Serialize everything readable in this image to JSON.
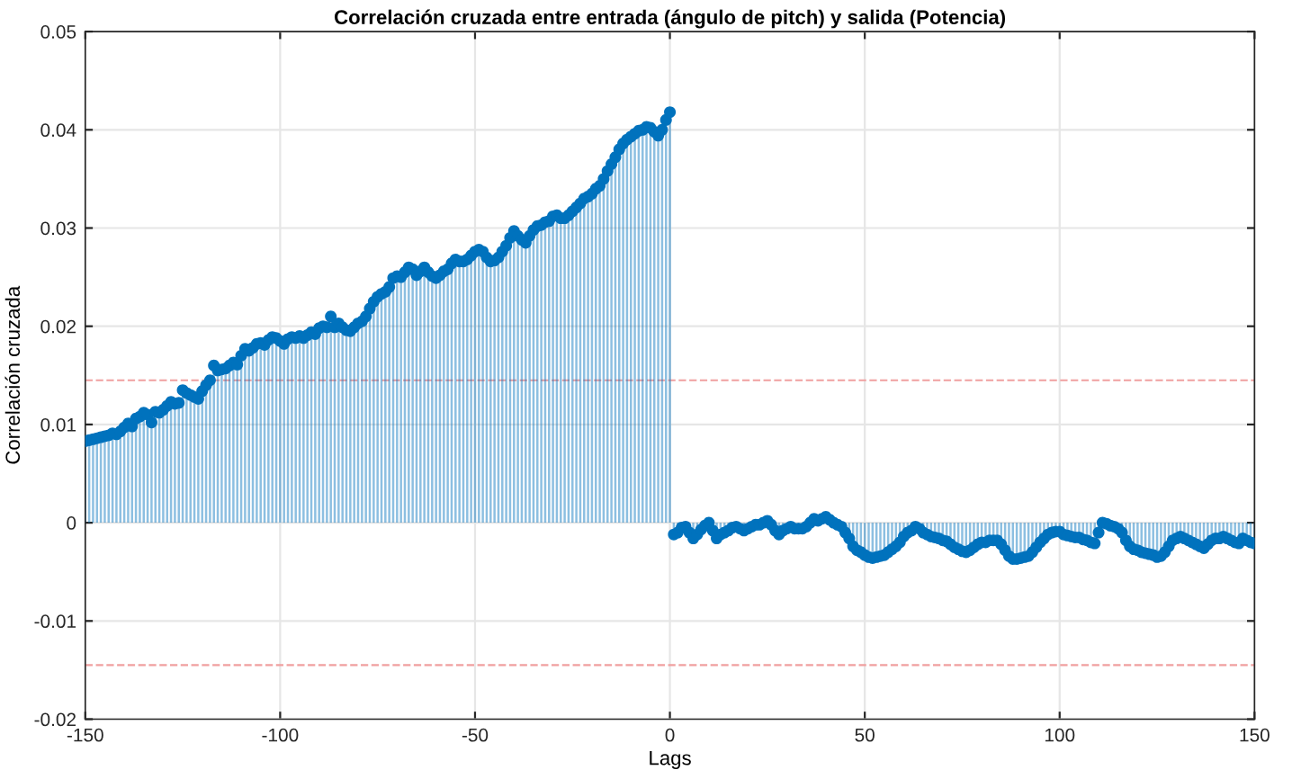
{
  "chart_data": {
    "type": "lollipop",
    "title": "Correlación cruzada entre entrada (ángulo de pitch) y salida (Potencia)",
    "xlabel": "Lags",
    "ylabel": "Correlación cruzada",
    "x": [
      -150,
      -149,
      -148,
      -147,
      -146,
      -145,
      -144,
      -143,
      -142,
      -141,
      -140,
      -139,
      -138,
      -137,
      -136,
      -135,
      -134,
      -133,
      -132,
      -131,
      -130,
      -129,
      -128,
      -127,
      -126,
      -125,
      -124,
      -123,
      -122,
      -121,
      -120,
      -119,
      -118,
      -117,
      -116,
      -115,
      -114,
      -113,
      -112,
      -111,
      -110,
      -109,
      -108,
      -107,
      -106,
      -105,
      -104,
      -103,
      -102,
      -101,
      -100,
      -99,
      -98,
      -97,
      -96,
      -95,
      -94,
      -93,
      -92,
      -91,
      -90,
      -89,
      -88,
      -87,
      -86,
      -85,
      -84,
      -83,
      -82,
      -81,
      -80,
      -79,
      -78,
      -77,
      -76,
      -75,
      -74,
      -73,
      -72,
      -71,
      -70,
      -69,
      -68,
      -67,
      -66,
      -65,
      -64,
      -63,
      -62,
      -61,
      -60,
      -59,
      -58,
      -57,
      -56,
      -55,
      -54,
      -53,
      -52,
      -51,
      -50,
      -49,
      -48,
      -47,
      -46,
      -45,
      -44,
      -43,
      -42,
      -41,
      -40,
      -39,
      -38,
      -37,
      -36,
      -35,
      -34,
      -33,
      -32,
      -31,
      -30,
      -29,
      -28,
      -27,
      -26,
      -25,
      -24,
      -23,
      -22,
      -21,
      -20,
      -19,
      -18,
      -17,
      -16,
      -15,
      -14,
      -13,
      -12,
      -11,
      -10,
      -9,
      -8,
      -7,
      -6,
      -5,
      -4,
      -3,
      -2,
      -1,
      0,
      1,
      2,
      3,
      4,
      5,
      6,
      7,
      8,
      9,
      10,
      11,
      12,
      13,
      14,
      15,
      16,
      17,
      18,
      19,
      20,
      21,
      22,
      23,
      24,
      25,
      26,
      27,
      28,
      29,
      30,
      31,
      32,
      33,
      34,
      35,
      36,
      37,
      38,
      39,
      40,
      41,
      42,
      43,
      44,
      45,
      46,
      47,
      48,
      49,
      50,
      51,
      52,
      53,
      54,
      55,
      56,
      57,
      58,
      59,
      60,
      61,
      62,
      63,
      64,
      65,
      66,
      67,
      68,
      69,
      70,
      71,
      72,
      73,
      74,
      75,
      76,
      77,
      78,
      79,
      80,
      81,
      82,
      83,
      84,
      85,
      86,
      87,
      88,
      89,
      90,
      91,
      92,
      93,
      94,
      95,
      96,
      97,
      98,
      99,
      100,
      101,
      102,
      103,
      104,
      105,
      106,
      107,
      108,
      109,
      110,
      111,
      112,
      113,
      114,
      115,
      116,
      117,
      118,
      119,
      120,
      121,
      122,
      123,
      124,
      125,
      126,
      127,
      128,
      129,
      130,
      131,
      132,
      133,
      134,
      135,
      136,
      137,
      138,
      139,
      140,
      141,
      142,
      143,
      144,
      145,
      146,
      147,
      148,
      149,
      150
    ],
    "series": [
      {
        "color": "#0072bd",
        "values": [
          0.0083,
          0.0084,
          0.0085,
          0.0086,
          0.0087,
          0.0088,
          0.0089,
          0.0091,
          0.009,
          0.0093,
          0.0097,
          0.0101,
          0.0098,
          0.0106,
          0.0108,
          0.0112,
          0.011,
          0.0102,
          0.0113,
          0.0112,
          0.0115,
          0.0119,
          0.0123,
          0.0121,
          0.0122,
          0.0135,
          0.0132,
          0.013,
          0.0128,
          0.0126,
          0.0134,
          0.014,
          0.0145,
          0.016,
          0.0155,
          0.0156,
          0.0157,
          0.016,
          0.0163,
          0.0161,
          0.017,
          0.0177,
          0.0175,
          0.0178,
          0.0182,
          0.0183,
          0.0181,
          0.0186,
          0.0189,
          0.0188,
          0.0185,
          0.0182,
          0.0187,
          0.0189,
          0.0188,
          0.019,
          0.0188,
          0.0191,
          0.0194,
          0.0192,
          0.0198,
          0.02,
          0.0199,
          0.021,
          0.0199,
          0.0203,
          0.0199,
          0.0196,
          0.0195,
          0.0199,
          0.0203,
          0.0205,
          0.021,
          0.0218,
          0.0225,
          0.023,
          0.0233,
          0.0235,
          0.024,
          0.0249,
          0.0251,
          0.025,
          0.0255,
          0.026,
          0.0258,
          0.0252,
          0.0256,
          0.026,
          0.0255,
          0.0251,
          0.0249,
          0.0252,
          0.0256,
          0.0258,
          0.0264,
          0.0268,
          0.0266,
          0.0266,
          0.0268,
          0.0272,
          0.0276,
          0.0278,
          0.0276,
          0.027,
          0.0266,
          0.0267,
          0.027,
          0.0276,
          0.0282,
          0.029,
          0.0297,
          0.0292,
          0.0288,
          0.0285,
          0.0292,
          0.0298,
          0.0302,
          0.0303,
          0.0306,
          0.0307,
          0.0312,
          0.0313,
          0.031,
          0.031,
          0.0313,
          0.0317,
          0.0321,
          0.0325,
          0.033,
          0.0332,
          0.0335,
          0.034,
          0.0343,
          0.035,
          0.0358,
          0.0365,
          0.0372,
          0.038,
          0.0386,
          0.039,
          0.0393,
          0.0396,
          0.0399,
          0.04,
          0.0403,
          0.0402,
          0.0398,
          0.0394,
          0.04,
          0.041,
          0.0418,
          -0.0012,
          -0.001,
          -0.0005,
          -0.0004,
          -0.001,
          -0.0016,
          -0.0012,
          -0.0007,
          -0.0003,
          0.0,
          -0.0008,
          -0.0016,
          -0.0012,
          -0.001,
          -0.0008,
          -0.0005,
          -0.0004,
          -0.0006,
          -0.0008,
          -0.0006,
          -0.0004,
          -0.0002,
          -0.0002,
          0.0,
          0.0002,
          -0.0002,
          -0.0008,
          -0.0012,
          -0.0008,
          -0.0006,
          -0.0004,
          -0.0006,
          -0.0006,
          -0.0006,
          -0.0004,
          0.0,
          0.0004,
          0.0002,
          0.0004,
          0.0006,
          0.0003,
          0.0,
          -0.0002,
          -0.0004,
          -0.001,
          -0.0016,
          -0.0024,
          -0.0028,
          -0.003,
          -0.0033,
          -0.0035,
          -0.0036,
          -0.0035,
          -0.0034,
          -0.0033,
          -0.003,
          -0.0027,
          -0.0024,
          -0.002,
          -0.0014,
          -0.001,
          -0.0008,
          -0.0004,
          -0.0006,
          -0.001,
          -0.0012,
          -0.0014,
          -0.0015,
          -0.0016,
          -0.0018,
          -0.0019,
          -0.0022,
          -0.0025,
          -0.0027,
          -0.0029,
          -0.003,
          -0.0028,
          -0.0025,
          -0.0022,
          -0.002,
          -0.002,
          -0.0018,
          -0.0018,
          -0.0018,
          -0.0022,
          -0.0028,
          -0.0034,
          -0.0037,
          -0.0037,
          -0.0036,
          -0.0035,
          -0.0034,
          -0.003,
          -0.0025,
          -0.002,
          -0.0016,
          -0.0012,
          -0.001,
          -0.0009,
          -0.0009,
          -0.0012,
          -0.0013,
          -0.0014,
          -0.0015,
          -0.0015,
          -0.0017,
          -0.0018,
          -0.002,
          -0.0021,
          -0.001,
          0.0,
          -0.0001,
          -0.0003,
          -0.0004,
          -0.0006,
          -0.001,
          -0.0018,
          -0.0024,
          -0.0027,
          -0.0028,
          -0.003,
          -0.0031,
          -0.0032,
          -0.0033,
          -0.0035,
          -0.0034,
          -0.003,
          -0.0024,
          -0.0018,
          -0.0016,
          -0.0014,
          -0.0016,
          -0.0018,
          -0.002,
          -0.0022,
          -0.0024,
          -0.0026,
          -0.0022,
          -0.0018,
          -0.0016,
          -0.0016,
          -0.0014,
          -0.0016,
          -0.0018,
          -0.002,
          -0.0021,
          -0.0016,
          -0.0018,
          -0.002,
          -0.0021
        ]
      }
    ],
    "ref_lines": [
      {
        "axis": "y",
        "value": 0.0145,
        "color": "#f0a0a0",
        "line_style": "dashed"
      },
      {
        "axis": "y",
        "value": -0.0145,
        "color": "#f0a0a0",
        "line_style": "dashed"
      }
    ],
    "xlim": [
      -150,
      150
    ],
    "xticks": [
      -150,
      -100,
      -50,
      0,
      50,
      100,
      150
    ],
    "ylim": [
      -0.02,
      0.05
    ],
    "yticks": [
      -0.02,
      -0.01,
      0,
      0.01,
      0.02,
      0.03,
      0.04,
      0.05
    ],
    "grid": true,
    "marker": "circle"
  }
}
